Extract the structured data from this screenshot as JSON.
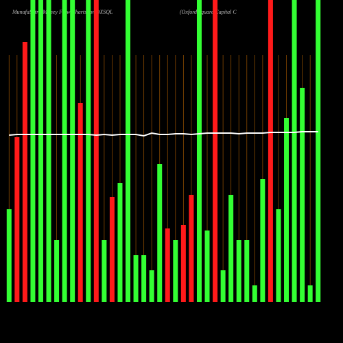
{
  "chart_data": {
    "type": "bar",
    "title": "MunafaSutra Money Flow Charts for OXSQL",
    "subtitle": "(Oxford Square Capital C",
    "categories": [
      null,
      null,
      null,
      null,
      null,
      null,
      null,
      null,
      null,
      null,
      null,
      null,
      null,
      null,
      null,
      null,
      null,
      null,
      null,
      null,
      null,
      null,
      null,
      null,
      null,
      null,
      null,
      null,
      null,
      null,
      null,
      null,
      null,
      null,
      null,
      null,
      null,
      null,
      null,
      null
    ],
    "ylim": [
      0,
      440
    ],
    "grid": true,
    "grid_color": "#8a4a00",
    "series": [
      {
        "type": "bar",
        "values": [
          135,
          240,
          379,
          440,
          440,
          440,
          90,
          440,
          440,
          290,
          440,
          440,
          90,
          153,
          173,
          440,
          68,
          68,
          46,
          201,
          107,
          90,
          112,
          156,
          440,
          104,
          440,
          46,
          156,
          90,
          90,
          24,
          179,
          440,
          135,
          268,
          440,
          312,
          24,
          440
        ],
        "colors": [
          "#33ff33",
          "#ff1a1a",
          "#ff1a1a",
          "#33ff33",
          "#33ff33",
          "#33ff33",
          "#33ff33",
          "#33ff33",
          "#33ff33",
          "#ff1a1a",
          "#33ff33",
          "#ff1a1a",
          "#33ff33",
          "#ff1a1a",
          "#33ff33",
          "#33ff33",
          "#33ff33",
          "#33ff33",
          "#33ff33",
          "#33ff33",
          "#ff1a1a",
          "#33ff33",
          "#ff1a1a",
          "#ff1a1a",
          "#33ff33",
          "#33ff33",
          "#ff1a1a",
          "#33ff33",
          "#33ff33",
          "#33ff33",
          "#33ff33",
          "#33ff33",
          "#33ff33",
          "#ff1a1a",
          "#33ff33",
          "#33ff33",
          "#33ff33",
          "#33ff33",
          "#33ff33",
          "#33ff33"
        ]
      },
      {
        "type": "line",
        "color": "#ffffff",
        "values": [
          243,
          244,
          244,
          244,
          244,
          244,
          244,
          244,
          244,
          244,
          244,
          243,
          244,
          243,
          244,
          244,
          244,
          242,
          246,
          244,
          244,
          245,
          245,
          244,
          245,
          246,
          246,
          246,
          246,
          245,
          246,
          246,
          246,
          247,
          247,
          247,
          247,
          248,
          248,
          248
        ]
      }
    ]
  }
}
